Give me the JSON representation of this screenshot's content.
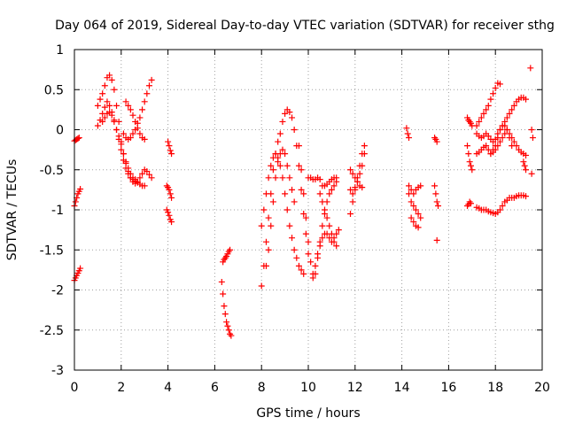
{
  "chart_data": {
    "type": "scatter",
    "title": "Day 064 of 2019, Sidereal Day-to-day VTEC variation (SDTVAR) for receiver sthg",
    "xlabel": "GPS time / hours",
    "ylabel": "SDTVAR / TECUs",
    "xlim": [
      0,
      20
    ],
    "ylim": [
      -3,
      1
    ],
    "xticks": [
      0,
      2,
      4,
      6,
      8,
      10,
      12,
      14,
      16,
      18,
      20
    ],
    "xtick_labels": [
      "0",
      "2",
      "4",
      "6",
      "8",
      "10",
      "12",
      "14",
      "16",
      "18",
      "20"
    ],
    "yticks": [
      -3,
      -2.5,
      -2,
      -1.5,
      -1,
      -0.5,
      0,
      0.5,
      1
    ],
    "ytick_labels": [
      "-3",
      "-2.5",
      "-2",
      "-1.5",
      "-1",
      "-0.5",
      "0",
      "0.5",
      "1"
    ],
    "grid": true,
    "legend": "none",
    "marker": "+",
    "color": "#ff0000",
    "series": [
      {
        "name": "t0_a",
        "x": [
          0.0,
          0.05,
          0.1,
          0.15,
          0.2
        ],
        "y": [
          -0.14,
          -0.13,
          -0.12,
          -0.11,
          -0.1
        ]
      },
      {
        "name": "t0_b",
        "x": [
          0.0,
          0.05,
          0.1,
          0.15,
          0.2,
          0.25
        ],
        "y": [
          -0.95,
          -0.9,
          -0.85,
          -0.8,
          -0.77,
          -0.74
        ]
      },
      {
        "name": "t0_c",
        "x": [
          0.0,
          0.05,
          0.1,
          0.15,
          0.2,
          0.25
        ],
        "y": [
          -1.88,
          -1.85,
          -1.82,
          -1.79,
          -1.76,
          -1.73
        ]
      },
      {
        "name": "t1",
        "x": [
          1.0,
          1.1,
          1.2,
          1.3,
          1.4,
          1.5,
          1.6,
          1.7,
          1.8,
          1.9,
          2.0,
          2.1,
          2.2,
          2.3,
          2.4,
          2.5,
          2.6,
          2.7,
          2.8,
          2.9,
          3.0,
          3.1,
          3.2,
          3.3
        ],
        "y": [
          0.3,
          0.38,
          0.45,
          0.55,
          0.65,
          0.68,
          0.62,
          0.5,
          0.3,
          0.1,
          -0.15,
          -0.3,
          -0.42,
          -0.52,
          -0.6,
          -0.65,
          -0.67,
          -0.65,
          -0.6,
          -0.55,
          -0.5,
          -0.52,
          -0.56,
          -0.6
        ]
      },
      {
        "name": "t2",
        "x": [
          1.0,
          1.1,
          1.2,
          1.3,
          1.4,
          1.5,
          1.6,
          1.7,
          1.8,
          1.9,
          2.0,
          2.1,
          2.2,
          2.3,
          2.4,
          2.5,
          2.6,
          2.7,
          2.8,
          2.9,
          3.0
        ],
        "y": [
          0.05,
          0.12,
          0.2,
          0.28,
          0.35,
          0.3,
          0.22,
          0.12,
          0.0,
          -0.12,
          -0.25,
          -0.38,
          -0.48,
          -0.55,
          -0.6,
          -0.62,
          -0.64,
          -0.66,
          -0.68,
          -0.7,
          -0.7
        ]
      },
      {
        "name": "t3",
        "x": [
          1.2,
          1.3,
          1.4,
          1.5,
          1.6,
          1.7,
          1.8,
          1.9,
          2.0,
          2.1,
          2.2,
          2.3,
          2.4,
          2.5,
          2.6
        ],
        "y": [
          0.1,
          0.15,
          0.2,
          0.22,
          0.18,
          0.1,
          0.0,
          -0.08,
          -0.18,
          -0.3,
          -0.4,
          -0.48,
          -0.55,
          -0.6,
          -0.62
        ]
      },
      {
        "name": "t4",
        "x": [
          2.1,
          2.2,
          2.3,
          2.4,
          2.5,
          2.6,
          2.7,
          2.8,
          2.9,
          3.0,
          3.1,
          3.2,
          3.3
        ],
        "y": [
          -0.05,
          -0.1,
          -0.12,
          -0.1,
          -0.05,
          0.0,
          0.08,
          0.15,
          0.25,
          0.35,
          0.45,
          0.55,
          0.62
        ]
      },
      {
        "name": "t5",
        "x": [
          2.2,
          2.3,
          2.4,
          2.5,
          2.6,
          2.7,
          2.8,
          2.9,
          3.0
        ],
        "y": [
          0.35,
          0.3,
          0.25,
          0.18,
          0.1,
          0.02,
          -0.05,
          -0.1,
          -0.12
        ]
      },
      {
        "name": "t6",
        "x": [
          4.0,
          4.05,
          4.1,
          4.15
        ],
        "y": [
          -0.15,
          -0.2,
          -0.26,
          -0.3
        ]
      },
      {
        "name": "t7",
        "x": [
          3.95,
          4.0,
          4.05,
          4.1,
          4.15
        ],
        "y": [
          -0.7,
          -0.72,
          -0.75,
          -0.8,
          -0.85
        ]
      },
      {
        "name": "t8",
        "x": [
          3.95,
          4.0,
          4.05,
          4.1,
          4.15
        ],
        "y": [
          -1.0,
          -1.03,
          -1.07,
          -1.12,
          -1.15
        ]
      },
      {
        "name": "t9",
        "x": [
          6.3,
          6.35,
          6.4,
          6.45,
          6.5,
          6.55,
          6.6,
          6.65,
          6.7
        ],
        "y": [
          -1.9,
          -2.05,
          -2.2,
          -2.3,
          -2.4,
          -2.45,
          -2.5,
          -2.55,
          -2.57
        ]
      },
      {
        "name": "t10",
        "x": [
          6.35,
          6.4,
          6.45,
          6.5,
          6.55,
          6.6,
          6.65
        ],
        "y": [
          -1.65,
          -1.62,
          -1.6,
          -1.58,
          -1.55,
          -1.52,
          -1.5
        ]
      },
      {
        "name": "t11",
        "x": [
          8.0,
          8.1,
          8.2,
          8.3,
          8.4,
          8.5,
          8.6,
          8.7,
          8.8,
          8.9,
          9.0,
          9.1,
          9.2,
          9.3,
          9.4,
          9.5,
          9.6,
          9.7,
          9.8,
          9.9,
          10.0
        ],
        "y": [
          -1.95,
          -1.7,
          -1.4,
          -1.1,
          -0.8,
          -0.5,
          -0.3,
          -0.15,
          -0.05,
          0.1,
          0.2,
          0.25,
          0.22,
          0.15,
          0.0,
          -0.2,
          -0.45,
          -0.75,
          -1.05,
          -1.3,
          -1.55
        ]
      },
      {
        "name": "t12",
        "x": [
          8.0,
          8.1,
          8.2,
          8.3,
          8.4,
          8.5,
          8.6,
          8.7,
          8.8,
          8.9,
          9.0,
          9.1,
          9.2,
          9.3,
          9.4,
          9.5,
          9.6,
          9.7,
          9.8
        ],
        "y": [
          -1.2,
          -1.0,
          -0.8,
          -0.6,
          -0.45,
          -0.35,
          -0.3,
          -0.35,
          -0.45,
          -0.6,
          -0.8,
          -1.0,
          -1.2,
          -1.35,
          -1.5,
          -1.6,
          -1.7,
          -1.75,
          -1.8
        ]
      },
      {
        "name": "t13",
        "x": [
          8.2,
          8.3,
          8.4,
          8.5,
          8.6,
          8.7,
          8.8,
          8.9,
          9.0,
          9.1,
          9.2,
          9.3,
          9.4
        ],
        "y": [
          -1.7,
          -1.5,
          -1.2,
          -0.9,
          -0.6,
          -0.4,
          -0.3,
          -0.25,
          -0.3,
          -0.45,
          -0.6,
          -0.75,
          -0.9
        ]
      },
      {
        "name": "t14",
        "x": [
          9.6,
          9.7,
          9.8,
          9.9,
          10.0,
          10.1,
          10.2,
          10.3,
          10.4,
          10.5,
          10.6,
          10.7,
          10.8,
          10.9,
          11.0,
          11.1,
          11.2
        ],
        "y": [
          -0.2,
          -0.5,
          -0.8,
          -1.1,
          -1.4,
          -1.65,
          -1.85,
          -1.8,
          -1.6,
          -1.4,
          -1.2,
          -1.05,
          -0.9,
          -0.8,
          -0.75,
          -0.7,
          -0.65
        ]
      },
      {
        "name": "t15",
        "x": [
          10.0,
          10.1,
          10.2,
          10.3,
          10.4,
          10.5,
          10.6,
          10.7,
          10.8,
          10.9,
          11.0,
          11.1,
          11.2
        ],
        "y": [
          -0.6,
          -0.6,
          -0.62,
          -0.62,
          -0.6,
          -0.62,
          -0.7,
          -0.7,
          -0.68,
          -0.65,
          -0.62,
          -0.6,
          -0.6
        ]
      },
      {
        "name": "t16",
        "x": [
          10.2,
          10.3,
          10.4,
          10.5,
          10.6,
          10.7,
          10.8,
          10.9,
          11.0,
          11.1,
          11.2,
          11.3
        ],
        "y": [
          -1.8,
          -1.7,
          -1.55,
          -1.45,
          -1.35,
          -1.3,
          -1.3,
          -1.35,
          -1.4,
          -1.35,
          -1.3,
          -1.25
        ]
      },
      {
        "name": "t17",
        "x": [
          10.5,
          10.6,
          10.7,
          10.8,
          10.9,
          11.0,
          11.1,
          11.2
        ],
        "y": [
          -0.8,
          -0.9,
          -1.0,
          -1.1,
          -1.2,
          -1.3,
          -1.4,
          -1.45
        ]
      },
      {
        "name": "t18",
        "x": [
          11.8,
          11.9,
          12.0,
          12.1,
          12.2,
          12.3,
          12.4
        ],
        "y": [
          -1.05,
          -0.9,
          -0.75,
          -0.6,
          -0.45,
          -0.3,
          -0.2
        ]
      },
      {
        "name": "t19",
        "x": [
          11.8,
          11.9,
          12.0,
          12.1,
          12.2,
          12.3
        ],
        "y": [
          -0.5,
          -0.55,
          -0.6,
          -0.65,
          -0.7,
          -0.72
        ]
      },
      {
        "name": "t20",
        "x": [
          11.8,
          11.9,
          12.0,
          12.1,
          12.2,
          12.3,
          12.4
        ],
        "y": [
          -0.75,
          -0.8,
          -0.72,
          -0.65,
          -0.55,
          -0.45,
          -0.3
        ]
      },
      {
        "name": "t21",
        "x": [
          14.2,
          14.25,
          14.3
        ],
        "y": [
          0.02,
          -0.05,
          -0.1
        ]
      },
      {
        "name": "t22",
        "x": [
          14.3,
          14.4,
          14.5,
          14.6,
          14.7,
          14.8
        ],
        "y": [
          -0.8,
          -0.9,
          -0.95,
          -1.0,
          -1.05,
          -1.1
        ]
      },
      {
        "name": "t23",
        "x": [
          14.3,
          14.4,
          14.5,
          14.6,
          14.7,
          14.8
        ],
        "y": [
          -0.7,
          -0.75,
          -0.8,
          -0.75,
          -0.72,
          -0.7
        ]
      },
      {
        "name": "t24",
        "x": [
          14.4,
          14.5,
          14.6,
          14.7
        ],
        "y": [
          -1.1,
          -1.15,
          -1.2,
          -1.22
        ]
      },
      {
        "name": "t25",
        "x": [
          15.4,
          15.45,
          15.5
        ],
        "y": [
          -0.1,
          -0.12,
          -0.15
        ]
      },
      {
        "name": "t26",
        "x": [
          15.4,
          15.45,
          15.5,
          15.55
        ],
        "y": [
          -0.7,
          -0.8,
          -0.9,
          -0.95
        ]
      },
      {
        "name": "t27",
        "x": [
          15.5
        ],
        "y": [
          -1.38
        ]
      },
      {
        "name": "t28",
        "x": [
          16.8,
          16.85,
          16.9,
          16.95,
          17.0
        ],
        "y": [
          0.15,
          0.12,
          0.1,
          0.08,
          0.05
        ]
      },
      {
        "name": "t29",
        "x": [
          16.8,
          16.85,
          16.9,
          16.95,
          17.0
        ],
        "y": [
          -0.2,
          -0.3,
          -0.4,
          -0.45,
          -0.5
        ]
      },
      {
        "name": "t30",
        "x": [
          16.8,
          16.85,
          16.9,
          16.95
        ],
        "y": [
          -0.95,
          -0.93,
          -0.9,
          -0.92
        ]
      },
      {
        "name": "t31",
        "x": [
          17.2,
          17.3,
          17.4,
          17.5,
          17.6,
          17.7,
          17.8,
          17.9,
          18.0,
          18.1,
          18.2
        ],
        "y": [
          0.05,
          0.1,
          0.15,
          0.2,
          0.25,
          0.3,
          0.38,
          0.45,
          0.52,
          0.58,
          0.57
        ]
      },
      {
        "name": "t32",
        "x": [
          17.2,
          17.3,
          17.4,
          17.5,
          17.6,
          17.7,
          17.8,
          17.9,
          18.0,
          18.1,
          18.2,
          18.3,
          18.4,
          18.5,
          18.6,
          18.7,
          18.8,
          18.9,
          19.0,
          19.1,
          19.2,
          19.3
        ],
        "y": [
          -0.05,
          -0.08,
          -0.1,
          -0.08,
          -0.05,
          -0.08,
          -0.12,
          -0.15,
          -0.12,
          -0.05,
          0.0,
          0.05,
          0.1,
          0.15,
          0.2,
          0.25,
          0.3,
          0.35,
          0.38,
          0.4,
          0.4,
          0.38
        ]
      },
      {
        "name": "t33",
        "x": [
          17.2,
          17.3,
          17.4,
          17.5,
          17.6,
          17.7,
          17.8,
          17.9,
          18.0,
          18.1,
          18.2,
          18.3,
          18.4,
          18.5,
          18.6,
          18.7,
          18.8,
          18.9,
          19.0,
          19.1,
          19.2,
          19.3
        ],
        "y": [
          -0.3,
          -0.28,
          -0.25,
          -0.22,
          -0.2,
          -0.25,
          -0.3,
          -0.28,
          -0.25,
          -0.2,
          -0.15,
          -0.1,
          -0.05,
          0.0,
          -0.05,
          -0.1,
          -0.15,
          -0.2,
          -0.25,
          -0.28,
          -0.3,
          -0.32
        ]
      },
      {
        "name": "t34",
        "x": [
          17.2,
          17.3,
          17.4,
          17.5,
          17.6,
          17.7,
          17.8,
          17.9,
          18.0,
          18.1,
          18.2,
          18.3,
          18.4,
          18.5,
          18.6,
          18.7,
          18.8,
          18.9,
          19.0,
          19.1,
          19.2,
          19.3
        ],
        "y": [
          -0.97,
          -0.98,
          -1.0,
          -1.0,
          -1.0,
          -1.02,
          -1.03,
          -1.04,
          -1.05,
          -1.03,
          -1.0,
          -0.95,
          -0.9,
          -0.88,
          -0.85,
          -0.85,
          -0.85,
          -0.83,
          -0.82,
          -0.82,
          -0.82,
          -0.83
        ]
      },
      {
        "name": "t35",
        "x": [
          17.8,
          17.9,
          18.0,
          18.1,
          18.2,
          18.3,
          18.4,
          18.5,
          18.6,
          18.7
        ],
        "y": [
          -0.3,
          -0.25,
          -0.2,
          -0.1,
          0.0,
          0.05,
          0.05,
          0.0,
          -0.1,
          -0.2
        ]
      },
      {
        "name": "t36",
        "x": [
          19.2,
          19.25,
          19.3
        ],
        "y": [
          -0.4,
          -0.45,
          -0.5
        ]
      },
      {
        "name": "t37",
        "x": [
          19.5,
          19.55,
          19.6
        ],
        "y": [
          0.77,
          0.0,
          -0.1
        ]
      },
      {
        "name": "t38",
        "x": [
          19.55
        ],
        "y": [
          -0.55
        ]
      }
    ]
  }
}
